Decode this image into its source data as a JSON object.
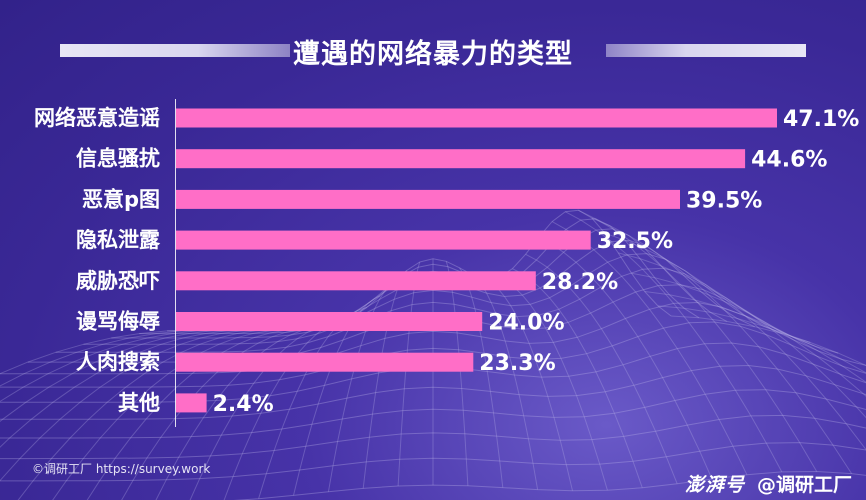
{
  "chart_data": {
    "type": "bar",
    "orientation": "horizontal",
    "title": "遭遇的网络暴力的类型",
    "categories": [
      "网络恶意造谣",
      "信息骚扰",
      "恶意p图",
      "隐私泄露",
      "威胁恐吓",
      "谩骂侮辱",
      "人肉搜索",
      "其他"
    ],
    "values": [
      47.1,
      44.6,
      39.5,
      32.5,
      28.2,
      24.0,
      23.3,
      2.4
    ],
    "value_labels": [
      "47.1%",
      "44.6%",
      "39.5%",
      "32.5%",
      "28.2%",
      "24.0%",
      "23.3%",
      "2.4%"
    ],
    "xlim": [
      0,
      47.1
    ],
    "unit": "%",
    "bar_color": "#ff6ec7",
    "grid": false
  },
  "footer": {
    "source": "©调研工厂 https://survey.work",
    "brand_logo": "澎湃号",
    "brand_handle": "@调研工厂"
  },
  "colors": {
    "background": "#3d2a9a",
    "bar": "#ff6ec7",
    "text": "#ffffff"
  }
}
